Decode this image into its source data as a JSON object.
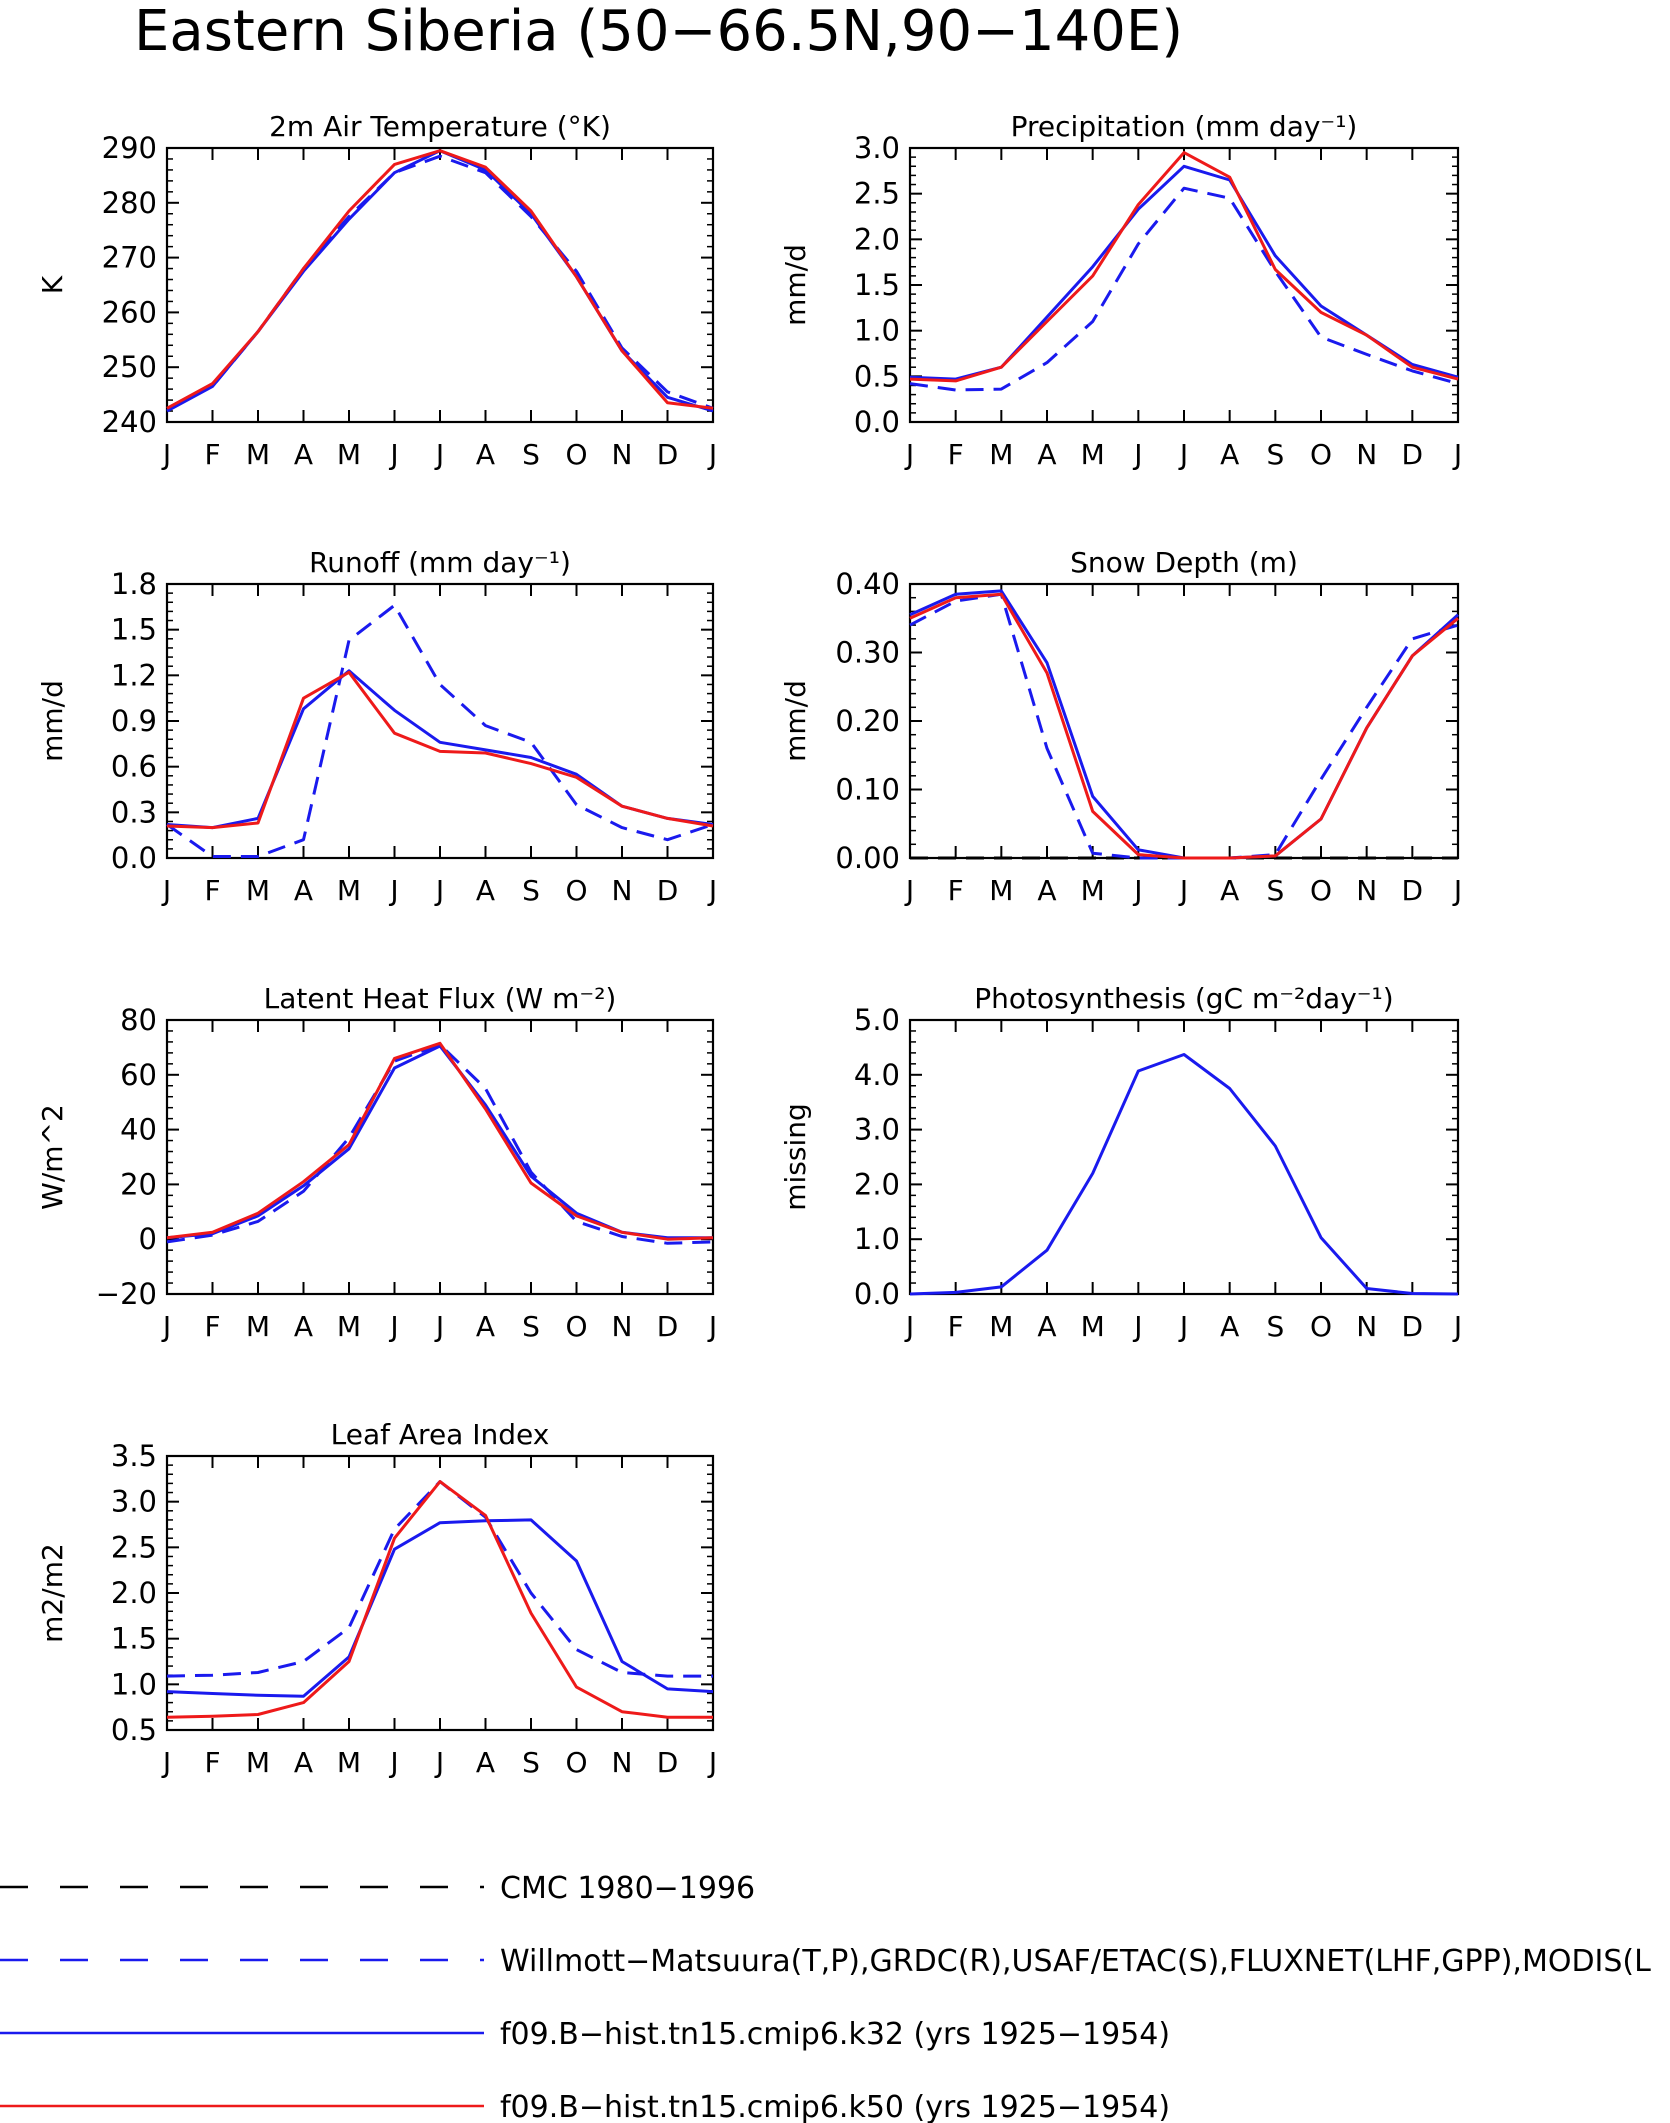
{
  "figure": {
    "title": "Eastern Siberia (50−66.5N,90−140E)"
  },
  "months": [
    "J",
    "F",
    "M",
    "A",
    "M",
    "J",
    "J",
    "A",
    "S",
    "O",
    "N",
    "D",
    "J"
  ],
  "colors": {
    "observed": "#1a1aee",
    "k32": "#1a1aee",
    "k50": "#ee1a1a",
    "cmc": "#000000",
    "axis": "#000000"
  },
  "legend": [
    {
      "label": "CMC 1980−1996",
      "color": "#000000",
      "style": "dashed"
    },
    {
      "label": "Willmott−Matsuura(T,P),GRDC(R),USAF/ETAC(S),FLUXNET(LHF,GPP),MODIS(L",
      "color": "#1a1aee",
      "style": "dashed"
    },
    {
      "label": "f09.B−hist.tn15.cmip6.k32 (yrs 1925−1954)",
      "color": "#1a1aee",
      "style": "solid"
    },
    {
      "label": "f09.B−hist.tn15.cmip6.k50 (yrs 1925−1954)",
      "color": "#ee1a1a",
      "style": "solid"
    }
  ],
  "chart_data": [
    {
      "type": "line",
      "title": "2m Air Temperature (°K)",
      "ylabel": "K",
      "ylim": [
        240,
        290
      ],
      "yticks": [
        "240",
        "250",
        "260",
        "270",
        "280",
        "290"
      ],
      "x": [
        "J",
        "F",
        "M",
        "A",
        "M",
        "J",
        "J",
        "A",
        "S",
        "O",
        "N",
        "D",
        "J"
      ],
      "series": [
        {
          "style": "dashed",
          "color": "#1a1aee",
          "values": [
            242.5,
            246.5,
            256.5,
            268,
            277.5,
            285.5,
            288.5,
            285.5,
            277.5,
            267.5,
            253.5,
            245.5,
            242.5
          ]
        },
        {
          "style": "solid",
          "color": "#1a1aee",
          "values": [
            242,
            246.5,
            256.5,
            267.5,
            277,
            285.5,
            289.5,
            286,
            278,
            266.5,
            253,
            244.5,
            242
          ]
        },
        {
          "style": "solid",
          "color": "#ee1a1a",
          "values": [
            242.5,
            247,
            256.5,
            268,
            278.5,
            287,
            289.5,
            286.5,
            278.5,
            266.5,
            253,
            243.5,
            242.5
          ]
        }
      ]
    },
    {
      "type": "line",
      "title": "Precipitation (mm day⁻¹)",
      "ylabel": "mm/d",
      "ylim": [
        0,
        3
      ],
      "yticks": [
        "0.0",
        "0.5",
        "1.0",
        "1.5",
        "2.0",
        "2.5",
        "3.0"
      ],
      "x": [
        "J",
        "F",
        "M",
        "A",
        "M",
        "J",
        "J",
        "A",
        "S",
        "O",
        "N",
        "D",
        "J"
      ],
      "series": [
        {
          "style": "dashed",
          "color": "#1a1aee",
          "values": [
            0.42,
            0.35,
            0.36,
            0.65,
            1.1,
            1.95,
            2.56,
            2.45,
            1.65,
            0.93,
            0.74,
            0.56,
            0.42
          ]
        },
        {
          "style": "solid",
          "color": "#1a1aee",
          "values": [
            0.49,
            0.47,
            0.6,
            1.15,
            1.7,
            2.33,
            2.8,
            2.65,
            1.82,
            1.27,
            0.95,
            0.63,
            0.49
          ]
        },
        {
          "style": "solid",
          "color": "#ee1a1a",
          "values": [
            0.47,
            0.45,
            0.6,
            1.1,
            1.6,
            2.38,
            2.95,
            2.68,
            1.67,
            1.2,
            0.95,
            0.6,
            0.47
          ]
        }
      ]
    },
    {
      "type": "line",
      "title": "Runoff (mm day⁻¹)",
      "ylabel": "mm/d",
      "ylim": [
        0,
        1.8
      ],
      "yticks": [
        "0.0",
        "0.3",
        "0.6",
        "0.9",
        "1.2",
        "1.5",
        "1.8"
      ],
      "x": [
        "J",
        "F",
        "M",
        "A",
        "M",
        "J",
        "J",
        "A",
        "S",
        "O",
        "N",
        "D",
        "J"
      ],
      "series": [
        {
          "style": "dashed",
          "color": "#1a1aee",
          "values": [
            0.22,
            0.01,
            0.01,
            0.12,
            1.43,
            1.66,
            1.14,
            0.87,
            0.76,
            0.35,
            0.2,
            0.12,
            0.22
          ]
        },
        {
          "style": "solid",
          "color": "#1a1aee",
          "values": [
            0.22,
            0.2,
            0.26,
            0.98,
            1.23,
            0.97,
            0.76,
            0.71,
            0.66,
            0.55,
            0.34,
            0.26,
            0.22
          ]
        },
        {
          "style": "solid",
          "color": "#ee1a1a",
          "values": [
            0.21,
            0.2,
            0.23,
            1.05,
            1.22,
            0.82,
            0.7,
            0.69,
            0.62,
            0.53,
            0.34,
            0.26,
            0.21
          ]
        }
      ]
    },
    {
      "type": "line",
      "title": "Snow Depth (m)",
      "ylabel": "mm/d",
      "ylim": [
        0,
        0.4
      ],
      "yticks": [
        "0.00",
        "0.10",
        "0.20",
        "0.30",
        "0.40"
      ],
      "x": [
        "J",
        "F",
        "M",
        "A",
        "M",
        "J",
        "J",
        "A",
        "S",
        "O",
        "N",
        "D",
        "J"
      ],
      "series": [
        {
          "style": "dashed",
          "color": "#000000",
          "values": [
            0,
            0,
            0,
            0,
            0,
            0,
            0,
            0,
            0,
            0,
            0,
            0,
            0
          ]
        },
        {
          "style": "dashed",
          "color": "#1a1aee",
          "values": [
            0.34,
            0.375,
            0.385,
            0.16,
            0.007,
            0,
            0,
            0,
            0.005,
            0.115,
            0.22,
            0.32,
            0.34
          ]
        },
        {
          "style": "solid",
          "color": "#1a1aee",
          "values": [
            0.355,
            0.385,
            0.39,
            0.285,
            0.09,
            0.012,
            0,
            0,
            0.003,
            0.057,
            0.19,
            0.295,
            0.355
          ]
        },
        {
          "style": "solid",
          "color": "#ee1a1a",
          "values": [
            0.35,
            0.38,
            0.385,
            0.27,
            0.068,
            0.005,
            0,
            0,
            0.003,
            0.057,
            0.19,
            0.295,
            0.35
          ]
        }
      ]
    },
    {
      "type": "line",
      "title": "Latent Heat Flux (W m⁻²)",
      "ylabel": "W/m^2",
      "ylim": [
        -20,
        80
      ],
      "yticks": [
        "−20",
        "0",
        "20",
        "40",
        "60",
        "80"
      ],
      "x": [
        "J",
        "F",
        "M",
        "A",
        "M",
        "J",
        "J",
        "A",
        "S",
        "O",
        "N",
        "D",
        "J"
      ],
      "series": [
        {
          "style": "dashed",
          "color": "#1a1aee",
          "values": [
            -1,
            1.5,
            6.5,
            17.5,
            37,
            65,
            71,
            55,
            24.5,
            6.5,
            1,
            -1.5,
            -1
          ]
        },
        {
          "style": "solid",
          "color": "#1a1aee",
          "values": [
            0.5,
            2,
            8.5,
            19.5,
            33,
            62.5,
            70.5,
            49,
            23,
            9.5,
            2.5,
            0.5,
            0.5
          ]
        },
        {
          "style": "solid",
          "color": "#ee1a1a",
          "values": [
            0.5,
            2.5,
            9.5,
            21,
            34.5,
            66,
            71.5,
            47.5,
            20.5,
            8.5,
            2.5,
            0,
            0.5
          ]
        }
      ]
    },
    {
      "type": "line",
      "title": "Photosynthesis (gC m⁻²day⁻¹)",
      "ylabel": "missing",
      "ylim": [
        0,
        5
      ],
      "yticks": [
        "0.0",
        "1.0",
        "2.0",
        "3.0",
        "4.0",
        "5.0"
      ],
      "x": [
        "J",
        "F",
        "M",
        "A",
        "M",
        "J",
        "J",
        "A",
        "S",
        "O",
        "N",
        "D",
        "J"
      ],
      "series": [
        {
          "style": "solid",
          "color": "#1a1aee",
          "values": [
            0,
            0.03,
            0.13,
            0.8,
            2.2,
            4.07,
            4.37,
            3.75,
            2.7,
            1.03,
            0.1,
            0.01,
            0
          ]
        }
      ]
    },
    {
      "type": "line",
      "title": "Leaf Area Index",
      "ylabel": "m2/m2",
      "ylim": [
        0.5,
        3.5
      ],
      "yticks": [
        "0.5",
        "1.0",
        "1.5",
        "2.0",
        "2.5",
        "3.0",
        "3.5"
      ],
      "x": [
        "J",
        "F",
        "M",
        "A",
        "M",
        "J",
        "J",
        "A",
        "S",
        "O",
        "N",
        "D",
        "J"
      ],
      "series": [
        {
          "style": "dashed",
          "color": "#1a1aee",
          "values": [
            1.09,
            1.1,
            1.13,
            1.25,
            1.62,
            2.7,
            3.22,
            2.83,
            2.0,
            1.38,
            1.13,
            1.09,
            1.09
          ]
        },
        {
          "style": "solid",
          "color": "#1a1aee",
          "values": [
            0.92,
            0.9,
            0.88,
            0.87,
            1.3,
            2.48,
            2.77,
            2.79,
            2.8,
            2.35,
            1.25,
            0.95,
            0.92
          ]
        },
        {
          "style": "solid",
          "color": "#ee1a1a",
          "values": [
            0.64,
            0.65,
            0.67,
            0.8,
            1.25,
            2.6,
            3.22,
            2.85,
            1.78,
            0.97,
            0.7,
            0.64,
            0.64
          ]
        }
      ]
    }
  ]
}
